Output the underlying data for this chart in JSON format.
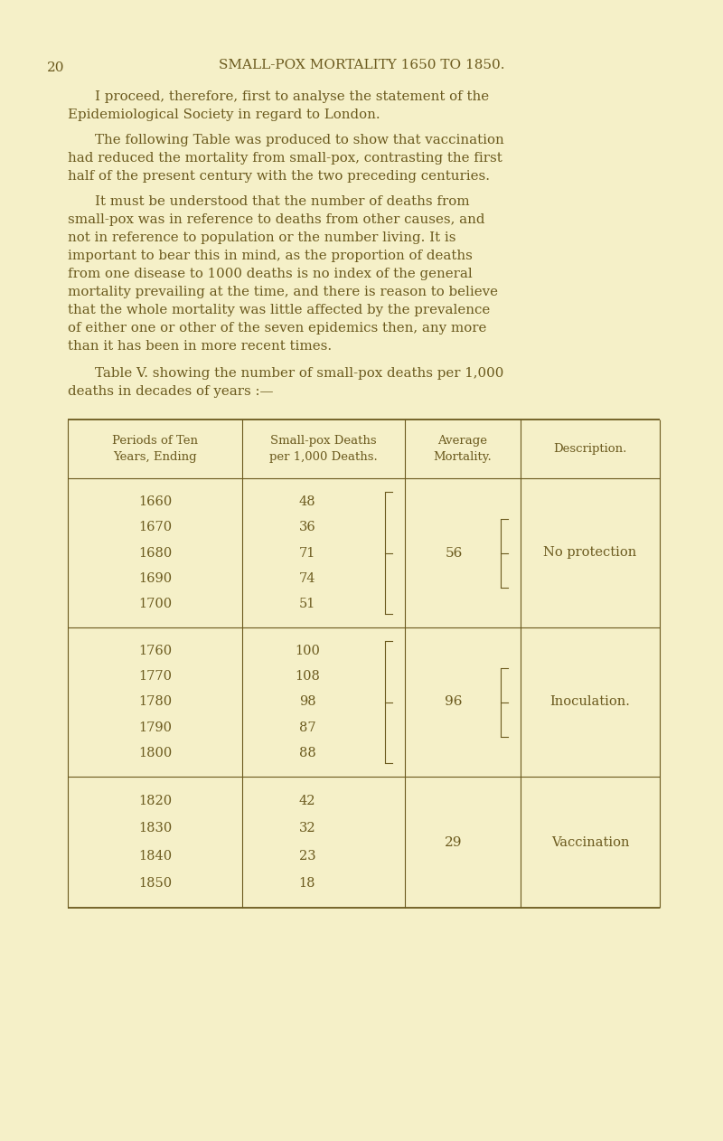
{
  "bg_color": "#f5f0c8",
  "text_color": "#6b5a1e",
  "page_number": "20",
  "header": "SMALL-POX MORTALITY 1650 TO 1850.",
  "para1": "I proceed, therefore, first to analyse the statement of the Epidemiological Society in regard to London.",
  "para2": "The following Table was produced to show that vaccination had reduced the mortality from small-pox, contrasting the first half of the present century with the two preceding centuries.",
  "para3_lines": [
    "It must be understood that the number of deaths from",
    "small-pox was in reference to deaths from other causes, and",
    "not in reference to population or the number living. It is",
    "important to bear this in mind, as the proportion of deaths",
    "from one disease to 1000 deaths is no index of the general",
    "mortality prevailing at the time, and there is reason to believe",
    "that the whole mortality was little affected by the prevalence",
    "of either one or other of the seven epidemics then, any more",
    "than it has been in more recent times."
  ],
  "para4_lines": [
    "Table V. showing the number of small-pox deaths per 1,000",
    "deaths in decades of years :—"
  ],
  "table_col_labels": [
    "Periods of Ten\nYears, Ending",
    "Small-pox Deaths\nper 1,000 Deaths.",
    "Average\nMortality.",
    "Description."
  ],
  "groups": [
    {
      "years": [
        "1660",
        "1670",
        "1680",
        "1690",
        "1700"
      ],
      "deaths": [
        "48",
        "36",
        "71",
        "74",
        "51"
      ],
      "has_death_bracket": true,
      "average": "56",
      "has_avg_bracket": true,
      "description": "No protection"
    },
    {
      "years": [
        "1760",
        "1770",
        "1780",
        "1790",
        "1800"
      ],
      "deaths": [
        "100",
        "108",
        "98",
        "87",
        "88"
      ],
      "has_death_bracket": true,
      "average": "96",
      "has_avg_bracket": true,
      "description": "Inoculation."
    },
    {
      "years": [
        "1820",
        "1830",
        "1840",
        "1850"
      ],
      "deaths": [
        "42",
        "32",
        "23",
        "18"
      ],
      "has_death_bracket": false,
      "average": "29",
      "has_avg_bracket": false,
      "description": "Vaccination"
    }
  ]
}
